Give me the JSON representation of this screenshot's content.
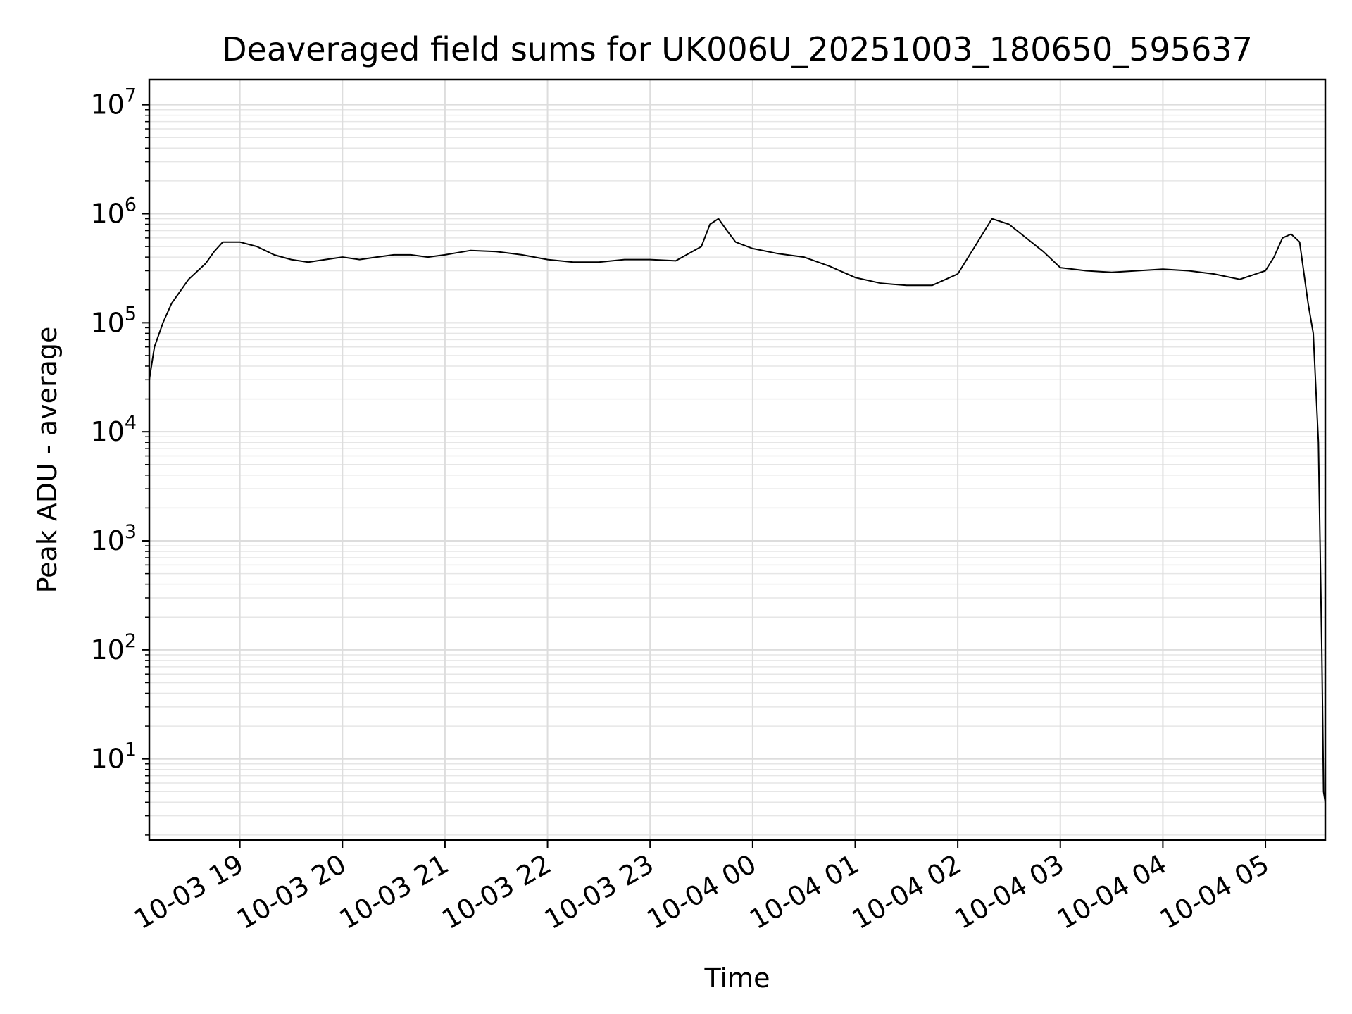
{
  "chart_data": {
    "type": "line",
    "title": "Deaveraged field sums for UK006U_20251003_180650_595637",
    "xlabel": "Time",
    "ylabel": "Peak ADU - average",
    "yscale": "log",
    "ylim": [
      1.8,
      17000000
    ],
    "xlim": [
      "2025-10-03 18:07",
      "2025-10-04 05:35"
    ],
    "grid": {
      "major": true,
      "minor": true
    },
    "line_color": "#000000",
    "x_ticks": [
      {
        "t": "2025-10-03 19:00",
        "label": "10-03 19"
      },
      {
        "t": "2025-10-03 20:00",
        "label": "10-03 20"
      },
      {
        "t": "2025-10-03 21:00",
        "label": "10-03 21"
      },
      {
        "t": "2025-10-03 22:00",
        "label": "10-03 22"
      },
      {
        "t": "2025-10-03 23:00",
        "label": "10-03 23"
      },
      {
        "t": "2025-10-04 00:00",
        "label": "10-04 00"
      },
      {
        "t": "2025-10-04 01:00",
        "label": "10-04 01"
      },
      {
        "t": "2025-10-04 02:00",
        "label": "10-04 02"
      },
      {
        "t": "2025-10-04 03:00",
        "label": "10-04 03"
      },
      {
        "t": "2025-10-04 04:00",
        "label": "10-04 04"
      },
      {
        "t": "2025-10-04 05:00",
        "label": "10-04 05"
      }
    ],
    "y_ticks": [
      {
        "value": 10,
        "base": "10",
        "exp": "1"
      },
      {
        "value": 100,
        "base": "10",
        "exp": "2"
      },
      {
        "value": 1000,
        "base": "10",
        "exp": "3"
      },
      {
        "value": 10000,
        "base": "10",
        "exp": "4"
      },
      {
        "value": 100000,
        "base": "10",
        "exp": "5"
      },
      {
        "value": 1000000,
        "base": "10",
        "exp": "6"
      },
      {
        "value": 10000000,
        "base": "10",
        "exp": "7"
      }
    ],
    "series": [
      {
        "x": [
          "2025-10-03 18:07",
          "2025-10-03 18:10",
          "2025-10-03 18:15",
          "2025-10-03 18:20",
          "2025-10-03 18:30",
          "2025-10-03 18:40",
          "2025-10-03 18:45",
          "2025-10-03 18:50",
          "2025-10-03 19:00",
          "2025-10-03 19:10",
          "2025-10-03 19:20",
          "2025-10-03 19:30",
          "2025-10-03 19:40",
          "2025-10-03 19:50",
          "2025-10-03 20:00",
          "2025-10-03 20:10",
          "2025-10-03 20:20",
          "2025-10-03 20:30",
          "2025-10-03 20:40",
          "2025-10-03 20:50",
          "2025-10-03 21:00",
          "2025-10-03 21:15",
          "2025-10-03 21:30",
          "2025-10-03 21:45",
          "2025-10-03 22:00",
          "2025-10-03 22:15",
          "2025-10-03 22:30",
          "2025-10-03 22:45",
          "2025-10-03 23:00",
          "2025-10-03 23:15",
          "2025-10-03 23:30",
          "2025-10-03 23:35",
          "2025-10-03 23:40",
          "2025-10-03 23:45",
          "2025-10-03 23:50",
          "2025-10-04 00:00",
          "2025-10-04 00:15",
          "2025-10-04 00:30",
          "2025-10-04 00:45",
          "2025-10-04 01:00",
          "2025-10-04 01:15",
          "2025-10-04 01:30",
          "2025-10-04 01:45",
          "2025-10-04 02:00",
          "2025-10-04 02:10",
          "2025-10-04 02:20",
          "2025-10-04 02:30",
          "2025-10-04 02:40",
          "2025-10-04 02:50",
          "2025-10-04 03:00",
          "2025-10-04 03:15",
          "2025-10-04 03:30",
          "2025-10-04 03:45",
          "2025-10-04 04:00",
          "2025-10-04 04:15",
          "2025-10-04 04:30",
          "2025-10-04 04:45",
          "2025-10-04 05:00",
          "2025-10-04 05:05",
          "2025-10-04 05:10",
          "2025-10-04 05:15",
          "2025-10-04 05:20",
          "2025-10-04 05:25",
          "2025-10-04 05:28",
          "2025-10-04 05:31",
          "2025-10-04 05:33",
          "2025-10-04 05:34",
          "2025-10-04 05:35"
        ],
        "y": [
          30000,
          60000,
          100000,
          150000,
          250000,
          350000,
          450000,
          550000,
          550000,
          500000,
          420000,
          380000,
          360000,
          380000,
          400000,
          380000,
          400000,
          420000,
          420000,
          400000,
          420000,
          460000,
          450000,
          420000,
          380000,
          360000,
          360000,
          380000,
          380000,
          370000,
          500000,
          800000,
          900000,
          700000,
          550000,
          480000,
          430000,
          400000,
          330000,
          260000,
          230000,
          220000,
          220000,
          280000,
          500000,
          900000,
          800000,
          600000,
          450000,
          320000,
          300000,
          290000,
          300000,
          310000,
          300000,
          280000,
          250000,
          300000,
          400000,
          600000,
          650000,
          550000,
          150000,
          80000,
          8000,
          100,
          5,
          4
        ]
      }
    ]
  }
}
